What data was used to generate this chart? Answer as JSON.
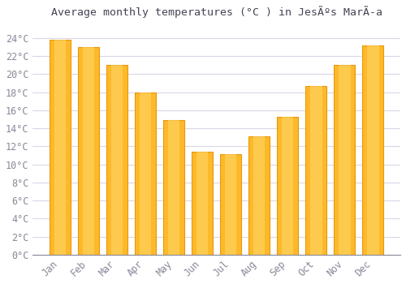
{
  "title": "Average monthly temperatures (°C ) in JesÃºs MarÃ­a",
  "months": [
    "Jan",
    "Feb",
    "Mar",
    "Apr",
    "May",
    "Jun",
    "Jul",
    "Aug",
    "Sep",
    "Oct",
    "Nov",
    "Dec"
  ],
  "values": [
    23.8,
    23.0,
    21.0,
    18.0,
    14.9,
    11.4,
    11.1,
    13.1,
    15.3,
    18.7,
    21.0,
    23.2
  ],
  "bar_color": "#FDB92A",
  "bar_edge_color": "#E8980A",
  "background_color": "#FFFFFF",
  "plot_bg_color": "#FFFFFF",
  "grid_color": "#D8D8E8",
  "text_color": "#888899",
  "ylim": [
    0,
    25.5
  ],
  "yticks": [
    0,
    2,
    4,
    6,
    8,
    10,
    12,
    14,
    16,
    18,
    20,
    22,
    24
  ],
  "title_fontsize": 9.5,
  "tick_fontsize": 8.5
}
